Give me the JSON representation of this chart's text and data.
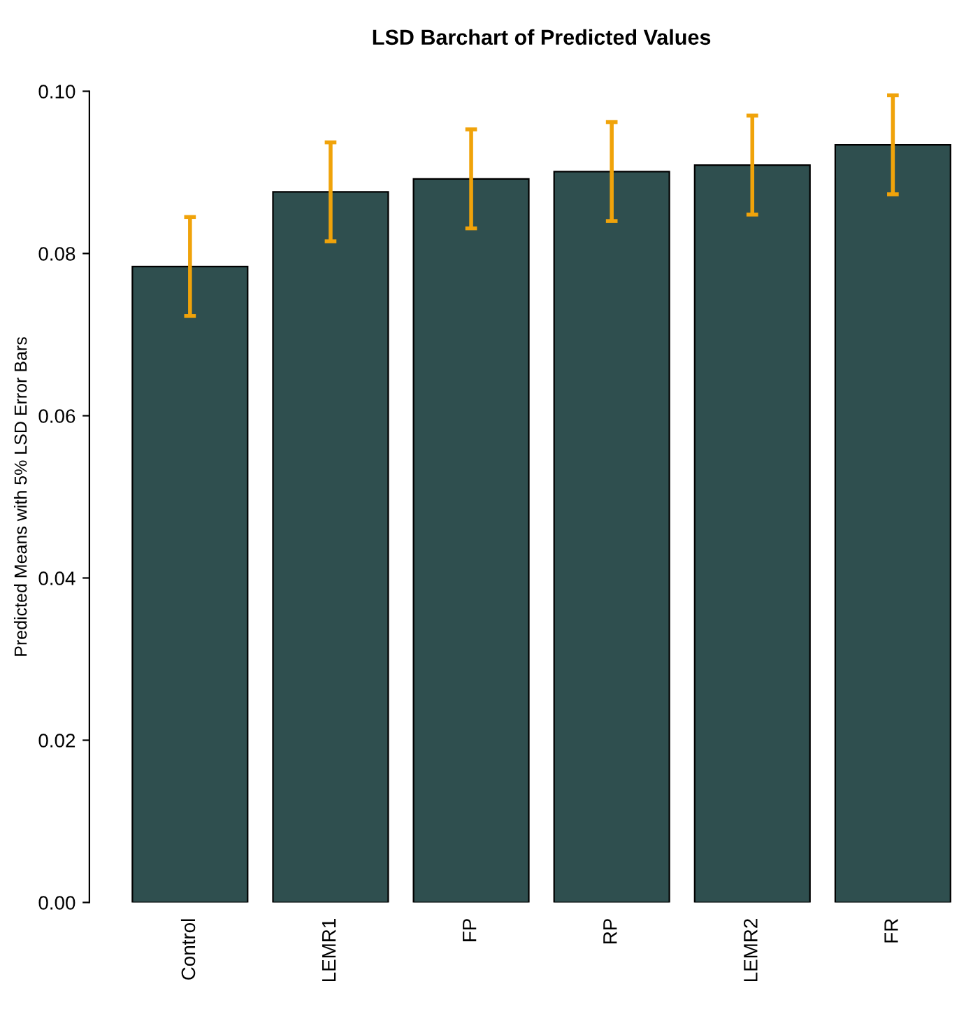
{
  "chart_data": {
    "type": "bar",
    "title": "LSD Barchart of Predicted Values",
    "ylabel": "Predicted Means with 5% LSD Error Bars",
    "categories": [
      "Control",
      "LEMR1",
      "FP",
      "RP",
      "LEMR2",
      "FR"
    ],
    "values": [
      0.0784,
      0.0876,
      0.0892,
      0.0901,
      0.0909,
      0.0934
    ],
    "errors": [
      0.0061,
      0.0061,
      0.0061,
      0.0061,
      0.0061,
      0.0061
    ],
    "color": "#2f4f4f",
    "ylim": [
      0,
      0.1
    ],
    "yticks": [
      {
        "value": 0,
        "label": "0.00"
      },
      {
        "value": 0.02,
        "label": "0.02"
      },
      {
        "value": 0.04,
        "label": "0.04"
      },
      {
        "value": 0.06,
        "label": "0.06"
      },
      {
        "value": 0.08,
        "label": "0.08"
      },
      {
        "value": 0.1,
        "label": "0.10"
      }
    ],
    "grid": false
  }
}
